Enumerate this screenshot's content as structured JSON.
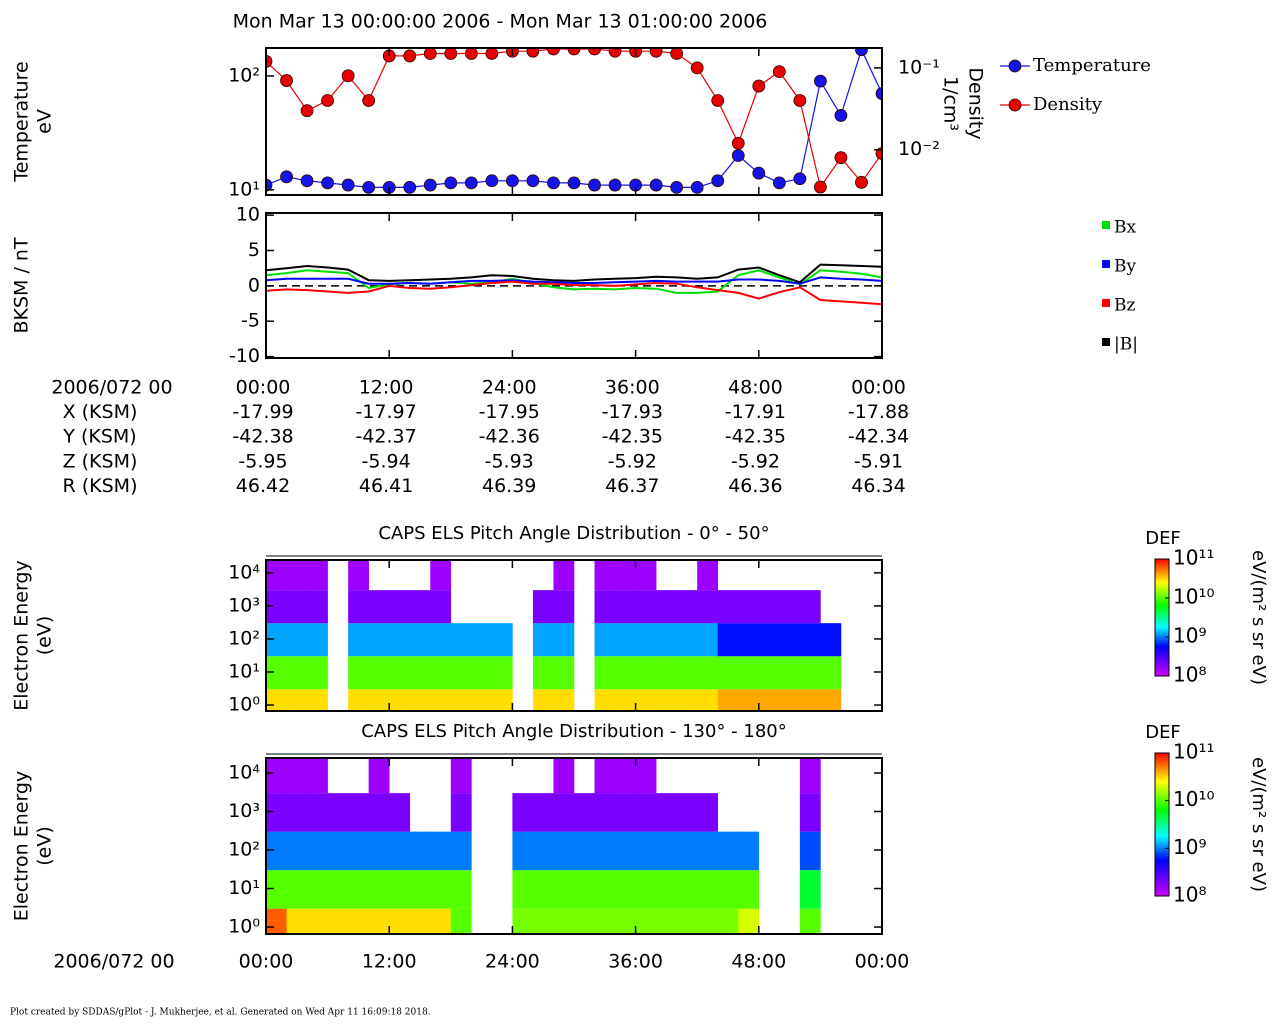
{
  "title": "Mon Mar 13 00:00:00 2006 - Mon Mar 13 01:00:00 2006",
  "footer": "Plot created by SDDAS/gPlot - J. Mukherjee, et al.  Generated on Wed Apr 11 16:09:18 2018.",
  "ephemeris": {
    "time_label": "2006/072 00",
    "times": [
      "00:00",
      "12:00",
      "24:00",
      "36:00",
      "48:00",
      "00:00"
    ],
    "rows": [
      {
        "label": "X (KSM)",
        "values": [
          -17.99,
          -17.97,
          -17.95,
          -17.93,
          -17.91,
          -17.88
        ]
      },
      {
        "label": "Y (KSM)",
        "values": [
          -42.38,
          -42.37,
          -42.36,
          -42.35,
          -42.35,
          -42.34
        ]
      },
      {
        "label": "Z (KSM)",
        "values": [
          -5.95,
          -5.94,
          -5.93,
          -5.92,
          -5.92,
          -5.91
        ]
      },
      {
        "label": "R (KSM)",
        "values": [
          46.42,
          46.41,
          46.39,
          46.37,
          46.36,
          46.34
        ]
      }
    ]
  },
  "chart_data": [
    {
      "type": "line",
      "ylabel": [
        "Temperature",
        "eV"
      ],
      "y2label": [
        "Density",
        "1/cm³"
      ],
      "x": [
        0,
        2,
        4,
        6,
        8,
        10,
        12,
        14,
        16,
        18,
        20,
        22,
        24,
        26,
        28,
        30,
        32,
        34,
        36,
        38,
        40,
        42,
        44,
        46,
        48,
        50,
        52,
        54,
        56,
        58,
        60
      ],
      "xlim": [
        0,
        60
      ],
      "xticks": [
        0,
        12,
        24,
        36,
        48,
        60
      ],
      "ylim": [
        9,
        176
      ],
      "log_y": true,
      "yticks": [
        {
          "value": 10,
          "label": "10¹"
        },
        {
          "value": 100,
          "label": "10²"
        }
      ],
      "y2lim": [
        0.0028,
        0.175
      ],
      "log_y2": true,
      "y2ticks": [
        {
          "value": 0.01,
          "label": "10⁻²"
        },
        {
          "value": 0.1,
          "label": "10⁻¹"
        }
      ],
      "markers": true,
      "legend": "outside-right",
      "series": [
        {
          "name": "Temperature",
          "color": "#1414e6",
          "values": [
            11,
            13,
            12,
            11.5,
            11,
            10.5,
            10.5,
            10.5,
            11,
            11.5,
            11.5,
            12,
            12,
            12,
            11.5,
            11.5,
            11,
            11,
            11,
            11,
            10.5,
            10.5,
            12,
            20,
            14,
            11.5,
            12.5,
            90,
            45,
            170,
            70
          ]
        },
        {
          "name": "Density",
          "color": "#e60000",
          "axis": "y2",
          "values": [
            0.12,
            0.07,
            0.03,
            0.04,
            0.08,
            0.04,
            0.14,
            0.14,
            0.15,
            0.15,
            0.15,
            0.15,
            0.16,
            0.16,
            0.17,
            0.17,
            0.17,
            0.16,
            0.16,
            0.16,
            0.15,
            0.1,
            0.04,
            0.012,
            0.06,
            0.09,
            0.04,
            0.0035,
            0.008,
            0.004,
            0.009
          ]
        }
      ]
    },
    {
      "type": "line",
      "ylabel": [
        "BKSM / nT"
      ],
      "x": [
        0,
        2,
        4,
        6,
        8,
        10,
        12,
        14,
        16,
        18,
        20,
        22,
        24,
        26,
        28,
        30,
        32,
        34,
        36,
        38,
        40,
        42,
        44,
        46,
        48,
        50,
        52,
        54,
        56,
        58,
        60
      ],
      "xlim": [
        0,
        60
      ],
      "xticks": [
        0,
        12,
        24,
        36,
        48,
        60
      ],
      "ylim": [
        -10.2,
        10.3
      ],
      "yticks": [
        -10,
        -5,
        0,
        5,
        10
      ],
      "hline": 0,
      "legend": "outside-right",
      "series": [
        {
          "name": "Bx",
          "color": "#00e000",
          "values": [
            1.5,
            1.8,
            2.2,
            2,
            1.8,
            -0.3,
            0.2,
            0.4,
            0.3,
            0.5,
            0.3,
            0.5,
            1,
            0.4,
            -0.2,
            -0.5,
            -0.4,
            -0.5,
            -0.3,
            -0.4,
            -1,
            -1,
            -0.8,
            1.5,
            2.2,
            1.2,
            0.2,
            2.2,
            2,
            1.7,
            1.2
          ]
        },
        {
          "name": "By",
          "color": "#0000ff",
          "values": [
            0.8,
            1,
            1,
            1,
            1,
            0.3,
            0.3,
            0.4,
            0.3,
            0.5,
            0.7,
            0.7,
            0.8,
            0.6,
            0.5,
            0.4,
            0.4,
            0.5,
            0.6,
            0.7,
            0.6,
            0.6,
            0.6,
            0.9,
            0.9,
            0.7,
            0.3,
            1.2,
            1,
            0.9,
            0.7
          ]
        },
        {
          "name": "Bz",
          "color": "#ff0000",
          "values": [
            -0.7,
            -0.5,
            -0.6,
            -0.8,
            -1,
            -0.8,
            0,
            -0.3,
            -0.4,
            -0.2,
            0.1,
            0.4,
            0.6,
            0.3,
            0.3,
            0.1,
            0.1,
            0,
            0.2,
            0.4,
            0.3,
            -0.2,
            -0.6,
            -1,
            -1.8,
            -0.9,
            -0.2,
            -2,
            -2.2,
            -2.4,
            -2.6
          ]
        },
        {
          "name": "|B|",
          "color": "#000000",
          "values": [
            2.2,
            2.5,
            2.8,
            2.6,
            2.3,
            0.8,
            0.7,
            0.8,
            0.9,
            1,
            1.2,
            1.5,
            1.4,
            1,
            0.8,
            0.7,
            0.9,
            1,
            1.1,
            1.3,
            1.2,
            1,
            1.2,
            2.3,
            2.6,
            1.5,
            0.5,
            3,
            2.9,
            2.8,
            2.7
          ]
        }
      ]
    },
    {
      "type": "heatmap",
      "title": "CAPS ELS Pitch Angle Distribution - 0° - 50°",
      "ylabel": [
        "Electron Energy",
        "(eV)"
      ],
      "x_edges": [
        0,
        2,
        4,
        6,
        8,
        10,
        12,
        14,
        16,
        18,
        20,
        22,
        24,
        26,
        28,
        30,
        32,
        34,
        36,
        38,
        40,
        42,
        44,
        46,
        48,
        50,
        52,
        54,
        56,
        58,
        60
      ],
      "y_edges": [
        0.66,
        3,
        30,
        300,
        3000,
        24500
      ],
      "xlim": [
        0,
        60
      ],
      "xticks": [
        0,
        12,
        24,
        36,
        48,
        60
      ],
      "ylim": [
        0.66,
        24500
      ],
      "log_y": true,
      "yticks": [
        {
          "value": 1,
          "label": "10⁰"
        },
        {
          "value": 10,
          "label": "10¹"
        },
        {
          "value": 100,
          "label": "10²"
        },
        {
          "value": 1000,
          "label": "10³"
        },
        {
          "value": 10000,
          "label": "10⁴"
        }
      ],
      "z": [
        [
          30000000000.0,
          30000000000.0,
          30000000000.0,
          null,
          30000000000.0,
          30000000000.0,
          30000000000.0,
          30000000000.0,
          30000000000.0,
          30000000000.0,
          30000000000.0,
          30000000000.0,
          null,
          30000000000.0,
          30000000000.0,
          null,
          30000000000.0,
          30000000000.0,
          30000000000.0,
          30000000000.0,
          30000000000.0,
          30000000000.0,
          40000000000.0,
          40000000000.0,
          40000000000.0,
          40000000000.0,
          40000000000.0,
          40000000000.0,
          null,
          null
        ],
        [
          10000000000.0,
          10000000000.0,
          10000000000.0,
          null,
          10000000000.0,
          10000000000.0,
          10000000000.0,
          10000000000.0,
          10000000000.0,
          10000000000.0,
          10000000000.0,
          10000000000.0,
          null,
          10000000000.0,
          10000000000.0,
          null,
          10000000000.0,
          10000000000.0,
          10000000000.0,
          10000000000.0,
          10000000000.0,
          10000000000.0,
          10000000000.0,
          10000000000.0,
          10000000000.0,
          10000000000.0,
          10000000000.0,
          10000000000.0,
          null,
          null
        ],
        [
          1200000000.0,
          1200000000.0,
          1200000000.0,
          null,
          1200000000.0,
          1200000000.0,
          1200000000.0,
          1200000000.0,
          1200000000.0,
          1200000000.0,
          1200000000.0,
          1200000000.0,
          null,
          1200000000.0,
          1200000000.0,
          null,
          1200000000.0,
          1200000000.0,
          1200000000.0,
          1200000000.0,
          1200000000.0,
          1200000000.0,
          600000000.0,
          600000000.0,
          600000000.0,
          600000000.0,
          600000000.0,
          600000000.0,
          null,
          null
        ],
        [
          200000000.0,
          200000000.0,
          200000000.0,
          null,
          200000000.0,
          200000000.0,
          200000000.0,
          200000000.0,
          200000000.0,
          null,
          null,
          null,
          null,
          200000000.0,
          200000000.0,
          null,
          200000000.0,
          200000000.0,
          200000000.0,
          200000000.0,
          200000000.0,
          200000000.0,
          200000000.0,
          200000000.0,
          200000000.0,
          200000000.0,
          200000000.0,
          null,
          null,
          null
        ],
        [
          150000000.0,
          150000000.0,
          150000000.0,
          null,
          150000000.0,
          null,
          null,
          null,
          150000000.0,
          null,
          null,
          null,
          null,
          null,
          150000000.0,
          null,
          150000000.0,
          150000000.0,
          150000000.0,
          null,
          null,
          150000000.0,
          null,
          null,
          null,
          null,
          null,
          null,
          null,
          null
        ]
      ],
      "colorbar": {
        "title": "DEF",
        "label": "eV/(m² s sr eV)",
        "zlim": [
          100000000.0,
          100000000000.0
        ],
        "log": true,
        "ticks": [
          {
            "value": 100000000.0,
            "label": "10⁸"
          },
          {
            "value": 1000000000.0,
            "label": "10⁹"
          },
          {
            "value": 10000000000.0,
            "label": "10¹⁰"
          },
          {
            "value": 100000000000.0,
            "label": "10¹¹"
          }
        ]
      }
    },
    {
      "type": "heatmap",
      "title": "CAPS ELS Pitch Angle Distribution - 130° - 180°",
      "ylabel": [
        "Electron Energy",
        "(eV)"
      ],
      "xlabel": "2006/072 00",
      "x_edges": [
        0,
        2,
        4,
        6,
        8,
        10,
        12,
        14,
        16,
        18,
        20,
        22,
        24,
        26,
        28,
        30,
        32,
        34,
        36,
        38,
        40,
        42,
        44,
        46,
        48,
        50,
        52,
        54,
        56,
        58,
        60
      ],
      "y_edges": [
        0.66,
        3,
        30,
        300,
        3000,
        24500
      ],
      "xlim": [
        0,
        60
      ],
      "xticks": [
        {
          "value": 0,
          "label": "00:00"
        },
        {
          "value": 12,
          "label": "12:00"
        },
        {
          "value": 24,
          "label": "24:00"
        },
        {
          "value": 36,
          "label": "36:00"
        },
        {
          "value": 48,
          "label": "48:00"
        },
        {
          "value": 60,
          "label": "00:00"
        }
      ],
      "ylim": [
        0.66,
        24500
      ],
      "log_y": true,
      "yticks": [
        {
          "value": 1,
          "label": "10⁰"
        },
        {
          "value": 10,
          "label": "10¹"
        },
        {
          "value": 100,
          "label": "10²"
        },
        {
          "value": 1000,
          "label": "10³"
        },
        {
          "value": 10000,
          "label": "10⁴"
        }
      ],
      "z": [
        [
          60000000000.0,
          30000000000.0,
          30000000000.0,
          30000000000.0,
          30000000000.0,
          30000000000.0,
          30000000000.0,
          30000000000.0,
          30000000000.0,
          10000000000.0,
          null,
          null,
          12000000000.0,
          12000000000.0,
          12000000000.0,
          12000000000.0,
          12000000000.0,
          12000000000.0,
          12000000000.0,
          12000000000.0,
          12000000000.0,
          12000000000.0,
          12000000000.0,
          20000000000.0,
          null,
          null,
          10000000000.0,
          null,
          null,
          null
        ],
        [
          10000000000.0,
          10000000000.0,
          10000000000.0,
          10000000000.0,
          10000000000.0,
          10000000000.0,
          10000000000.0,
          10000000000.0,
          10000000000.0,
          10000000000.0,
          null,
          null,
          10000000000.0,
          10000000000.0,
          10000000000.0,
          10000000000.0,
          10000000000.0,
          10000000000.0,
          10000000000.0,
          10000000000.0,
          10000000000.0,
          10000000000.0,
          10000000000.0,
          10000000000.0,
          null,
          null,
          5000000000.0,
          null,
          null,
          null
        ],
        [
          1000000000.0,
          1000000000.0,
          1000000000.0,
          1000000000.0,
          1000000000.0,
          1000000000.0,
          1000000000.0,
          1000000000.0,
          1000000000.0,
          1000000000.0,
          null,
          null,
          1000000000.0,
          1000000000.0,
          1000000000.0,
          1000000000.0,
          1000000000.0,
          1000000000.0,
          1000000000.0,
          1000000000.0,
          1000000000.0,
          1000000000.0,
          1000000000.0,
          1000000000.0,
          null,
          null,
          800000000.0,
          null,
          null,
          null
        ],
        [
          200000000.0,
          200000000.0,
          200000000.0,
          200000000.0,
          200000000.0,
          200000000.0,
          200000000.0,
          null,
          null,
          200000000.0,
          null,
          null,
          200000000.0,
          200000000.0,
          200000000.0,
          200000000.0,
          200000000.0,
          200000000.0,
          200000000.0,
          200000000.0,
          200000000.0,
          200000000.0,
          null,
          null,
          null,
          null,
          200000000.0,
          null,
          null,
          null
        ],
        [
          150000000.0,
          150000000.0,
          150000000.0,
          null,
          null,
          150000000.0,
          null,
          null,
          null,
          150000000.0,
          null,
          null,
          null,
          null,
          150000000.0,
          null,
          150000000.0,
          150000000.0,
          150000000.0,
          null,
          null,
          null,
          null,
          null,
          null,
          null,
          150000000.0,
          null,
          null,
          null
        ]
      ],
      "colorbar": {
        "title": "DEF",
        "label": "eV/(m² s sr eV)",
        "zlim": [
          100000000.0,
          100000000000.0
        ],
        "log": true,
        "ticks": [
          {
            "value": 100000000.0,
            "label": "10⁸"
          },
          {
            "value": 1000000000.0,
            "label": "10⁹"
          },
          {
            "value": 10000000000.0,
            "label": "10¹⁰"
          },
          {
            "value": 100000000000.0,
            "label": "10¹¹"
          }
        ]
      }
    }
  ]
}
